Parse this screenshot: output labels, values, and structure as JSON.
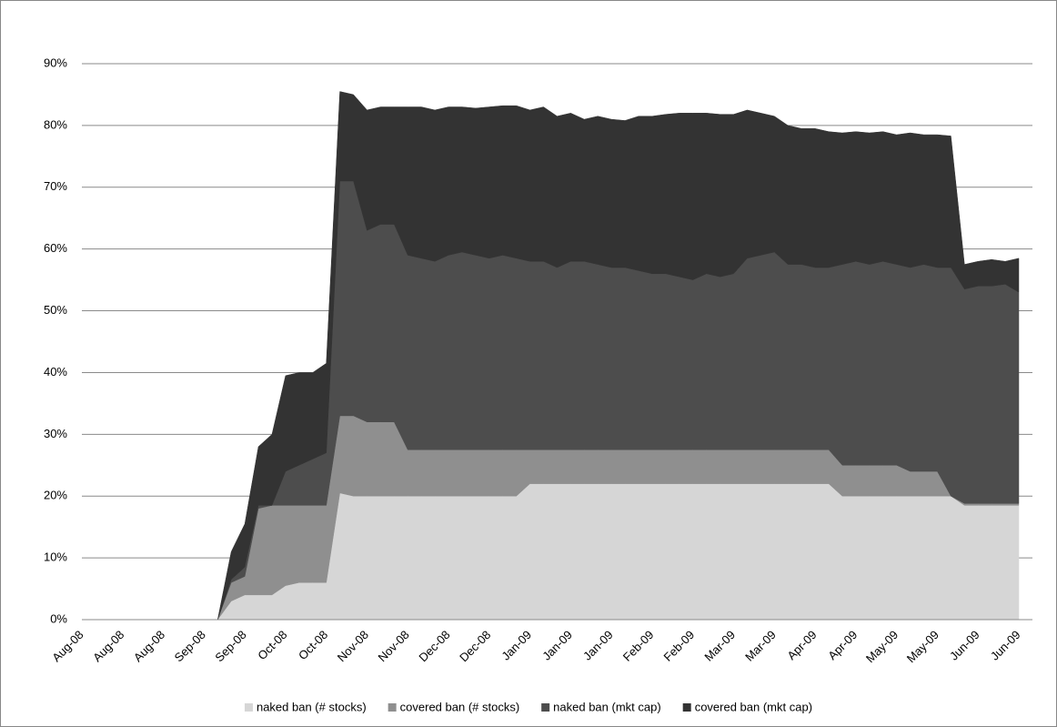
{
  "chart_data": {
    "type": "stacked-area",
    "categories": [
      "Aug-08",
      null,
      null,
      "Aug-08",
      null,
      null,
      "Aug-08",
      null,
      null,
      "Sep-08",
      null,
      null,
      "Sep-08",
      null,
      null,
      "Oct-08",
      null,
      null,
      "Oct-08",
      null,
      null,
      "Nov-08",
      null,
      null,
      "Nov-08",
      null,
      null,
      "Dec-08",
      null,
      null,
      "Dec-08",
      null,
      null,
      "Jan-09",
      null,
      null,
      "Jan-09",
      null,
      null,
      "Jan-09",
      null,
      null,
      "Feb-09",
      null,
      null,
      "Feb-09",
      null,
      null,
      "Mar-09",
      null,
      null,
      "Mar-09",
      null,
      null,
      "Apr-09",
      null,
      null,
      "Apr-09",
      null,
      null,
      "May-09",
      null,
      null,
      "May-09",
      null,
      null,
      "Jun-09",
      null,
      null,
      "Jun-09"
    ],
    "series": [
      {
        "name": "naked ban (# stocks)",
        "color": "#d6d6d6",
        "values": [
          0,
          0,
          0,
          0,
          0,
          0,
          0,
          0,
          0,
          0,
          0,
          3,
          4,
          4,
          4,
          5.5,
          6,
          6,
          6,
          20.5,
          20,
          20,
          20,
          20,
          20,
          20,
          20,
          20,
          20,
          20,
          20,
          20,
          20,
          22,
          22,
          22,
          22,
          22,
          22,
          22,
          22,
          22,
          22,
          22,
          22,
          22,
          22,
          22,
          22,
          22,
          22,
          22,
          22,
          22,
          22,
          22,
          20,
          20,
          20,
          20,
          20,
          20,
          20,
          20,
          20,
          18.5,
          18.5,
          18.5,
          18.5,
          18.5
        ]
      },
      {
        "name": "covered ban (# stocks)",
        "color": "#8f8f8f",
        "values": [
          0,
          0,
          0,
          0,
          0,
          0,
          0,
          0,
          0,
          0,
          0,
          3,
          3,
          14,
          14.5,
          13,
          12.5,
          12.5,
          12.5,
          12.5,
          13,
          12,
          12,
          12,
          7.5,
          7.5,
          7.5,
          7.5,
          7.5,
          7.5,
          7.5,
          7.5,
          7.5,
          5.5,
          5.5,
          5.5,
          5.5,
          5.5,
          5.5,
          5.5,
          5.5,
          5.5,
          5.5,
          5.5,
          5.5,
          5.5,
          5.5,
          5.5,
          5.5,
          5.5,
          5.5,
          5.5,
          5.5,
          5.5,
          5.5,
          5.5,
          5,
          5,
          5,
          5,
          5,
          4,
          4,
          4,
          0,
          0.3,
          0.3,
          0.3,
          0.3,
          0.3
        ]
      },
      {
        "name": "naked ban (mkt cap)",
        "color": "#4d4d4d",
        "values": [
          0,
          0,
          0,
          0,
          0,
          0,
          0,
          0,
          0,
          0,
          0,
          0.5,
          1.5,
          0.5,
          0,
          5.5,
          6.5,
          7.5,
          8.5,
          38,
          38,
          31,
          32,
          32,
          31.5,
          31,
          30.5,
          31.5,
          32,
          31.5,
          31,
          31.5,
          31,
          30.5,
          30.5,
          29.5,
          30.5,
          30.5,
          30,
          29.5,
          29.5,
          29,
          28.5,
          28.5,
          28,
          27.5,
          28.5,
          28,
          28.5,
          31,
          31.5,
          32,
          30,
          30,
          29.5,
          29.5,
          32.5,
          33,
          32.5,
          33,
          32.5,
          33,
          33.5,
          33,
          37,
          34.7,
          35.2,
          35.2,
          35.5,
          34.2
        ]
      },
      {
        "name": "covered ban (mkt cap)",
        "color": "#333333",
        "values": [
          0,
          0,
          0,
          0,
          0,
          0,
          0,
          0,
          0,
          0,
          0,
          4.5,
          7,
          9.5,
          11.5,
          15.5,
          15,
          14,
          14.5,
          14.5,
          14,
          19.5,
          19,
          19,
          24,
          24.5,
          24.5,
          24,
          23.5,
          23.8,
          24.5,
          24.2,
          24.7,
          24.5,
          25,
          24.5,
          24,
          23,
          24,
          24,
          23.8,
          25,
          25.5,
          25.8,
          26.5,
          27,
          26,
          26.3,
          25.8,
          24,
          23,
          22,
          22.5,
          22,
          22.5,
          22,
          21.3,
          21,
          21.3,
          21,
          21,
          21.8,
          21,
          21.5,
          21.3,
          4,
          4,
          4.3,
          3.7,
          5.5
        ]
      }
    ],
    "ylim": [
      0,
      90
    ],
    "yticks": [
      {
        "value": 0,
        "label": "0%"
      },
      {
        "value": 10,
        "label": "10%"
      },
      {
        "value": 20,
        "label": "20%"
      },
      {
        "value": 30,
        "label": "30%"
      },
      {
        "value": 40,
        "label": "40%"
      },
      {
        "value": 50,
        "label": "50%"
      },
      {
        "value": 60,
        "label": "60%"
      },
      {
        "value": 70,
        "label": "70%"
      },
      {
        "value": 80,
        "label": "80%"
      },
      {
        "value": 90,
        "label": "90%"
      }
    ],
    "grid": true,
    "legend": "bottom"
  }
}
